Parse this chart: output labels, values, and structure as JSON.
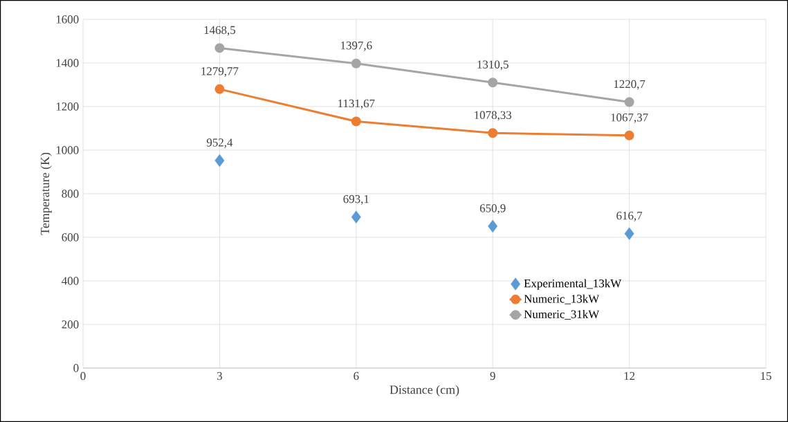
{
  "chart_data": {
    "type": "line",
    "xlabel": "Distance (cm)",
    "ylabel": "Temperature (K)",
    "xlim": [
      0,
      15
    ],
    "xticks": [
      0,
      3,
      6,
      9,
      12,
      15
    ],
    "ylim": [
      0,
      1600
    ],
    "yticks": [
      0,
      200,
      400,
      600,
      800,
      1000,
      1200,
      1400,
      1600
    ],
    "grid": true,
    "legend": "right",
    "series": [
      {
        "name": "Experimental_13kW",
        "type": "scatter",
        "marker": "diamond",
        "color": "#5b9bd5",
        "x": [
          3,
          6,
          9,
          12
        ],
        "values": [
          952.4,
          693.1,
          650.9,
          616.7
        ],
        "value_labels": [
          "952,4",
          "693,1",
          "650,9",
          "616,7"
        ]
      },
      {
        "name": "Numeric_13kW",
        "marker": "circle",
        "color": "#ed7d31",
        "x": [
          3,
          6,
          9,
          12
        ],
        "values": [
          1279.77,
          1131.67,
          1078.33,
          1067.37
        ],
        "value_labels": [
          "1279,77",
          "1131,67",
          "1078,33",
          "1067,37"
        ]
      },
      {
        "name": "Numeric_31kW",
        "marker": "circle",
        "color": "#a5a5a5",
        "x": [
          3,
          6,
          9,
          12
        ],
        "values": [
          1468.5,
          1397.6,
          1310.5,
          1220.7
        ],
        "value_labels": [
          "1468,5",
          "1397,6",
          "1310,5",
          "1220,7"
        ]
      }
    ]
  }
}
